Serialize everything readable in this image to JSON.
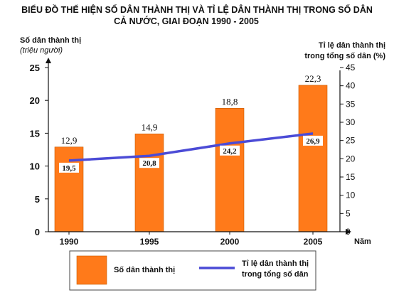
{
  "chart_data": {
    "type": "bar",
    "title": [
      "BIỂU ĐỒ THỂ HIỆN SỐ DÂN THÀNH THỊ VÀ TỈ LỆ DÂN THÀNH THỊ TRONG SỐ DÂN",
      "CẢ NƯỚC, GIAI ĐOẠN 1990 - 2005"
    ],
    "categories": [
      "1990",
      "1995",
      "2000",
      "2005"
    ],
    "xlabel": "Năm",
    "y_left": {
      "label": "Số dân thành thị",
      "unit": "(triệu người)",
      "ylim": [
        0,
        25
      ],
      "ticks": [
        "0",
        "5",
        "10",
        "15",
        "20",
        "25"
      ]
    },
    "y_right": {
      "label": "Tỉ lệ dân thành thị",
      "unit_line": "trong tổng số dân (%)",
      "ylim": [
        0,
        45
      ],
      "ticks": [
        "0",
        "5",
        "10",
        "15",
        "20",
        "25",
        "30",
        "35",
        "40",
        "45"
      ]
    },
    "series": [
      {
        "name": "Số dân thành thị",
        "type": "bar",
        "axis": "left",
        "values": [
          12.9,
          14.9,
          18.8,
          22.3
        ],
        "labels": [
          "12,9",
          "14,9",
          "18,8",
          "22,3"
        ],
        "color": "#ff7a1a"
      },
      {
        "name": "Tỉ lệ dân thành thị trong tổng số dân",
        "legend_lines": [
          "Tỉ lệ dân thành thị",
          "trong tổng số dân"
        ],
        "type": "line",
        "axis": "right",
        "values": [
          19.5,
          20.8,
          24.2,
          26.9
        ],
        "labels": [
          "19,5",
          "20,8",
          "24,2",
          "26,9"
        ],
        "color": "#4b4bd6"
      }
    ],
    "grid": false,
    "legend_position": "bottom"
  }
}
